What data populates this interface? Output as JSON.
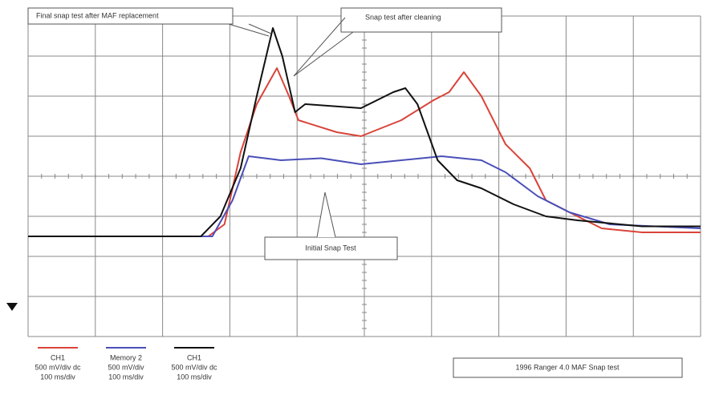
{
  "chart_data": {
    "type": "line",
    "annotations": [
      "Final snap test after MAF replacement",
      "Snap test after cleaning",
      "Initial Snap Test"
    ],
    "caption": "1996 Ranger 4.0 MAF Snap test",
    "xlim": [
      0,
      10
    ],
    "ylim": [
      -4,
      4
    ],
    "grid": true,
    "series": [
      {
        "name": "CH1",
        "scale": "500 mV/div dc",
        "timebase": "100 ms/div",
        "color": "#d9443a",
        "x": [
          0,
          2.68,
          2.92,
          3.16,
          3.4,
          3.7,
          3.88,
          4.02,
          4.59,
          4.95,
          5.55,
          6.03,
          6.26,
          6.48,
          6.74,
          7.1,
          7.46,
          7.7,
          8.05,
          8.53,
          9.13,
          10
        ],
        "values": [
          -1.5,
          -1.5,
          -1.2,
          0.6,
          1.8,
          2.7,
          2.0,
          1.4,
          1.1,
          1.0,
          1.4,
          1.9,
          2.1,
          2.6,
          2.0,
          0.8,
          0.2,
          -0.6,
          -0.9,
          -1.3,
          -1.4,
          -1.4
        ]
      },
      {
        "name": "Memory 2",
        "scale": "500 mV/div",
        "timebase": "100 ms/div",
        "color": "#4a4fb8",
        "x": [
          0,
          2.74,
          3.04,
          3.28,
          3.76,
          4.36,
          4.95,
          5.55,
          6.15,
          6.74,
          7.1,
          7.58,
          8.05,
          8.65,
          10
        ],
        "values": [
          -1.5,
          -1.5,
          -0.6,
          0.5,
          0.4,
          0.45,
          0.3,
          0.4,
          0.5,
          0.4,
          0.1,
          -0.5,
          -0.9,
          -1.2,
          -1.3
        ]
      },
      {
        "name": "CH1",
        "scale": "500 mV/div dc",
        "timebase": "100 ms/div",
        "color": "#111111",
        "x": [
          0,
          2.57,
          2.86,
          3.16,
          3.4,
          3.64,
          3.78,
          3.97,
          4.12,
          4.95,
          5.43,
          5.61,
          5.79,
          6.09,
          6.38,
          6.74,
          7.22,
          7.7,
          8.17,
          9.13,
          10
        ],
        "values": [
          -1.5,
          -1.5,
          -1.0,
          0.2,
          2.0,
          3.7,
          3.0,
          1.6,
          1.8,
          1.7,
          2.1,
          2.2,
          1.8,
          0.4,
          -0.1,
          -0.3,
          -0.7,
          -1.0,
          -1.1,
          -1.25,
          -1.25
        ]
      }
    ]
  }
}
